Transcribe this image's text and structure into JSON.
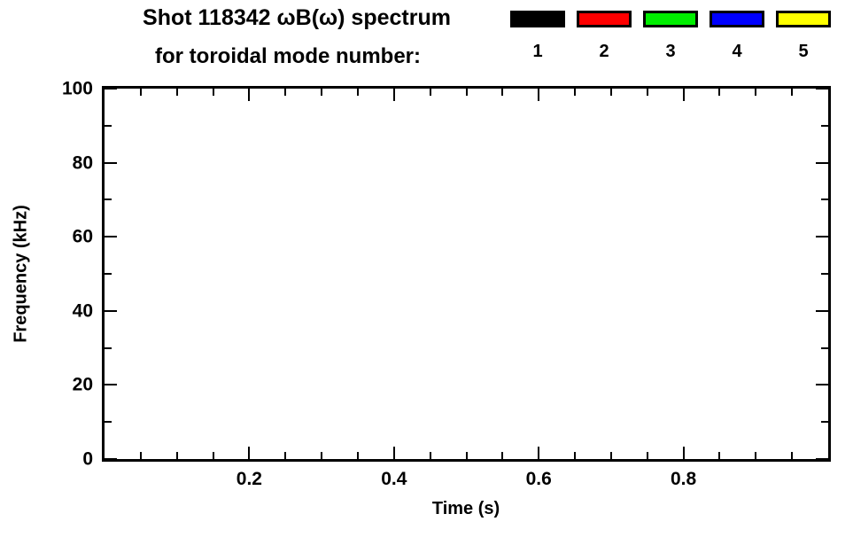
{
  "title": {
    "line1": "Shot 118342 ωB(ω) spectrum",
    "line2": "for toroidal mode number:"
  },
  "legend": {
    "items": [
      {
        "label": "1",
        "color": "#000000"
      },
      {
        "label": "2",
        "color": "#ff0000"
      },
      {
        "label": "3",
        "color": "#00ee00"
      },
      {
        "label": "4",
        "color": "#0000ff"
      },
      {
        "label": "5",
        "color": "#ffff00"
      }
    ]
  },
  "chart_data": {
    "type": "scatter",
    "title": "Shot 118342 ωB(ω) spectrum for toroidal mode number: 1 2 3 4 5",
    "xlabel": "Time (s)",
    "ylabel": "Frequency (kHz)",
    "xlim": [
      0,
      1
    ],
    "ylim": [
      0,
      100
    ],
    "grid": false,
    "legend_position": "top-right",
    "x_ticks": {
      "major": [
        0.2,
        0.4,
        0.6,
        0.8
      ],
      "major_labels": [
        "0.2",
        "0.4",
        "0.6",
        "0.8"
      ],
      "minor_step": 0.05
    },
    "y_ticks": {
      "major": [
        0,
        20,
        40,
        60,
        80,
        100
      ],
      "major_labels": [
        "0",
        "20",
        "40",
        "60",
        "80",
        "100"
      ],
      "minor_step": 10
    },
    "series": [
      {
        "name": "1",
        "color": "#000000",
        "points": []
      },
      {
        "name": "2",
        "color": "#ff0000",
        "points": []
      },
      {
        "name": "3",
        "color": "#00ee00",
        "points": []
      },
      {
        "name": "4",
        "color": "#0000ff",
        "points": []
      },
      {
        "name": "5",
        "color": "#ffff00",
        "points": []
      }
    ]
  }
}
